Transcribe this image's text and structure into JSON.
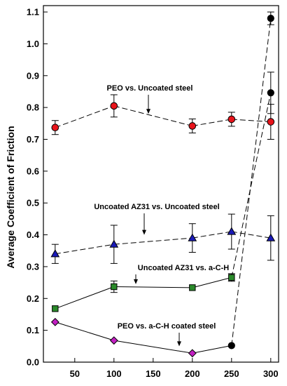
{
  "chart_data": {
    "type": "line",
    "title": "",
    "xlabel": "",
    "ylabel": "Average Coefficient of Friction",
    "xlim": [
      10,
      310
    ],
    "ylim": [
      0,
      1.12
    ],
    "xticks": [
      50,
      100,
      150,
      200,
      250,
      300
    ],
    "yticks": [
      0.0,
      0.1,
      0.2,
      0.3,
      0.4,
      0.5,
      0.6,
      0.7,
      0.8,
      0.9,
      1.0,
      1.1
    ],
    "grid": false,
    "legend": "none",
    "series": [
      {
        "name": "PEO vs. Uncoated steel",
        "marker": "circle",
        "color": "#e8141b",
        "line": "dashed",
        "points": [
          {
            "x": 25,
            "y": 0.737,
            "err": 0.022
          },
          {
            "x": 100,
            "y": 0.805,
            "err": 0.035
          },
          {
            "x": 200,
            "y": 0.742,
            "err": 0.022
          },
          {
            "x": 250,
            "y": 0.763,
            "err": 0.022
          },
          {
            "x": 300,
            "y": 0.755,
            "err": 0.055
          }
        ]
      },
      {
        "name": "Uncoated AZ31 vs. Uncoated steel",
        "marker": "triangle",
        "color": "#1a1ab8",
        "line": "dashed",
        "points": [
          {
            "x": 25,
            "y": 0.34,
            "err": 0.03
          },
          {
            "x": 100,
            "y": 0.37,
            "err": 0.06
          },
          {
            "x": 200,
            "y": 0.39,
            "err": 0.045
          },
          {
            "x": 250,
            "y": 0.41,
            "err": 0.055
          },
          {
            "x": 300,
            "y": 0.39,
            "err": 0.07
          }
        ]
      },
      {
        "name": "Uncoated AZ31 vs. a-C-H",
        "marker": "square",
        "color": "#2a8a2a",
        "line": "solid",
        "points": [
          {
            "x": 25,
            "y": 0.168,
            "err": 0
          },
          {
            "x": 100,
            "y": 0.237,
            "err": 0.018
          },
          {
            "x": 200,
            "y": 0.234,
            "err": 0
          },
          {
            "x": 250,
            "y": 0.266,
            "err": 0.012
          },
          {
            "x": 300,
            "y": 0.846,
            "err": 0.065
          }
        ]
      },
      {
        "name": "PEO vs. a-C-H coated steel",
        "marker": "diamond",
        "color": "#c21ec2",
        "line": "solid",
        "points": [
          {
            "x": 25,
            "y": 0.126,
            "err": 0
          },
          {
            "x": 100,
            "y": 0.068,
            "err": 0
          },
          {
            "x": 200,
            "y": 0.028,
            "err": 0
          },
          {
            "x": 250,
            "y": 0.052,
            "err": 0
          },
          {
            "x": 300,
            "y": 1.08,
            "err": 0.02
          }
        ]
      }
    ],
    "black_markers": [
      {
        "series": 3,
        "x": 250
      },
      {
        "series": 3,
        "x": 300
      },
      {
        "series": 2,
        "x": 300
      }
    ],
    "dashed_segments": [
      {
        "series": 2,
        "from_x": 250,
        "to_x": 300
      },
      {
        "series": 3,
        "from_x": 250,
        "to_x": 300
      }
    ],
    "annotations": [
      {
        "text": "PEO vs. Uncoated steel",
        "arrow_to": {
          "x": 135,
          "y": 0.78
        }
      },
      {
        "text": "Uncoated AZ31 vs. Uncoated steel",
        "arrow_to": {
          "x": 140,
          "y": 0.4
        }
      },
      {
        "text": "Uncoated AZ31 vs. a-C-H",
        "arrow_to": {
          "x": 130,
          "y": 0.245
        }
      },
      {
        "text": "PEO vs. a-C-H coated steel",
        "arrow_to": {
          "x": 185,
          "y": 0.05
        }
      }
    ]
  }
}
